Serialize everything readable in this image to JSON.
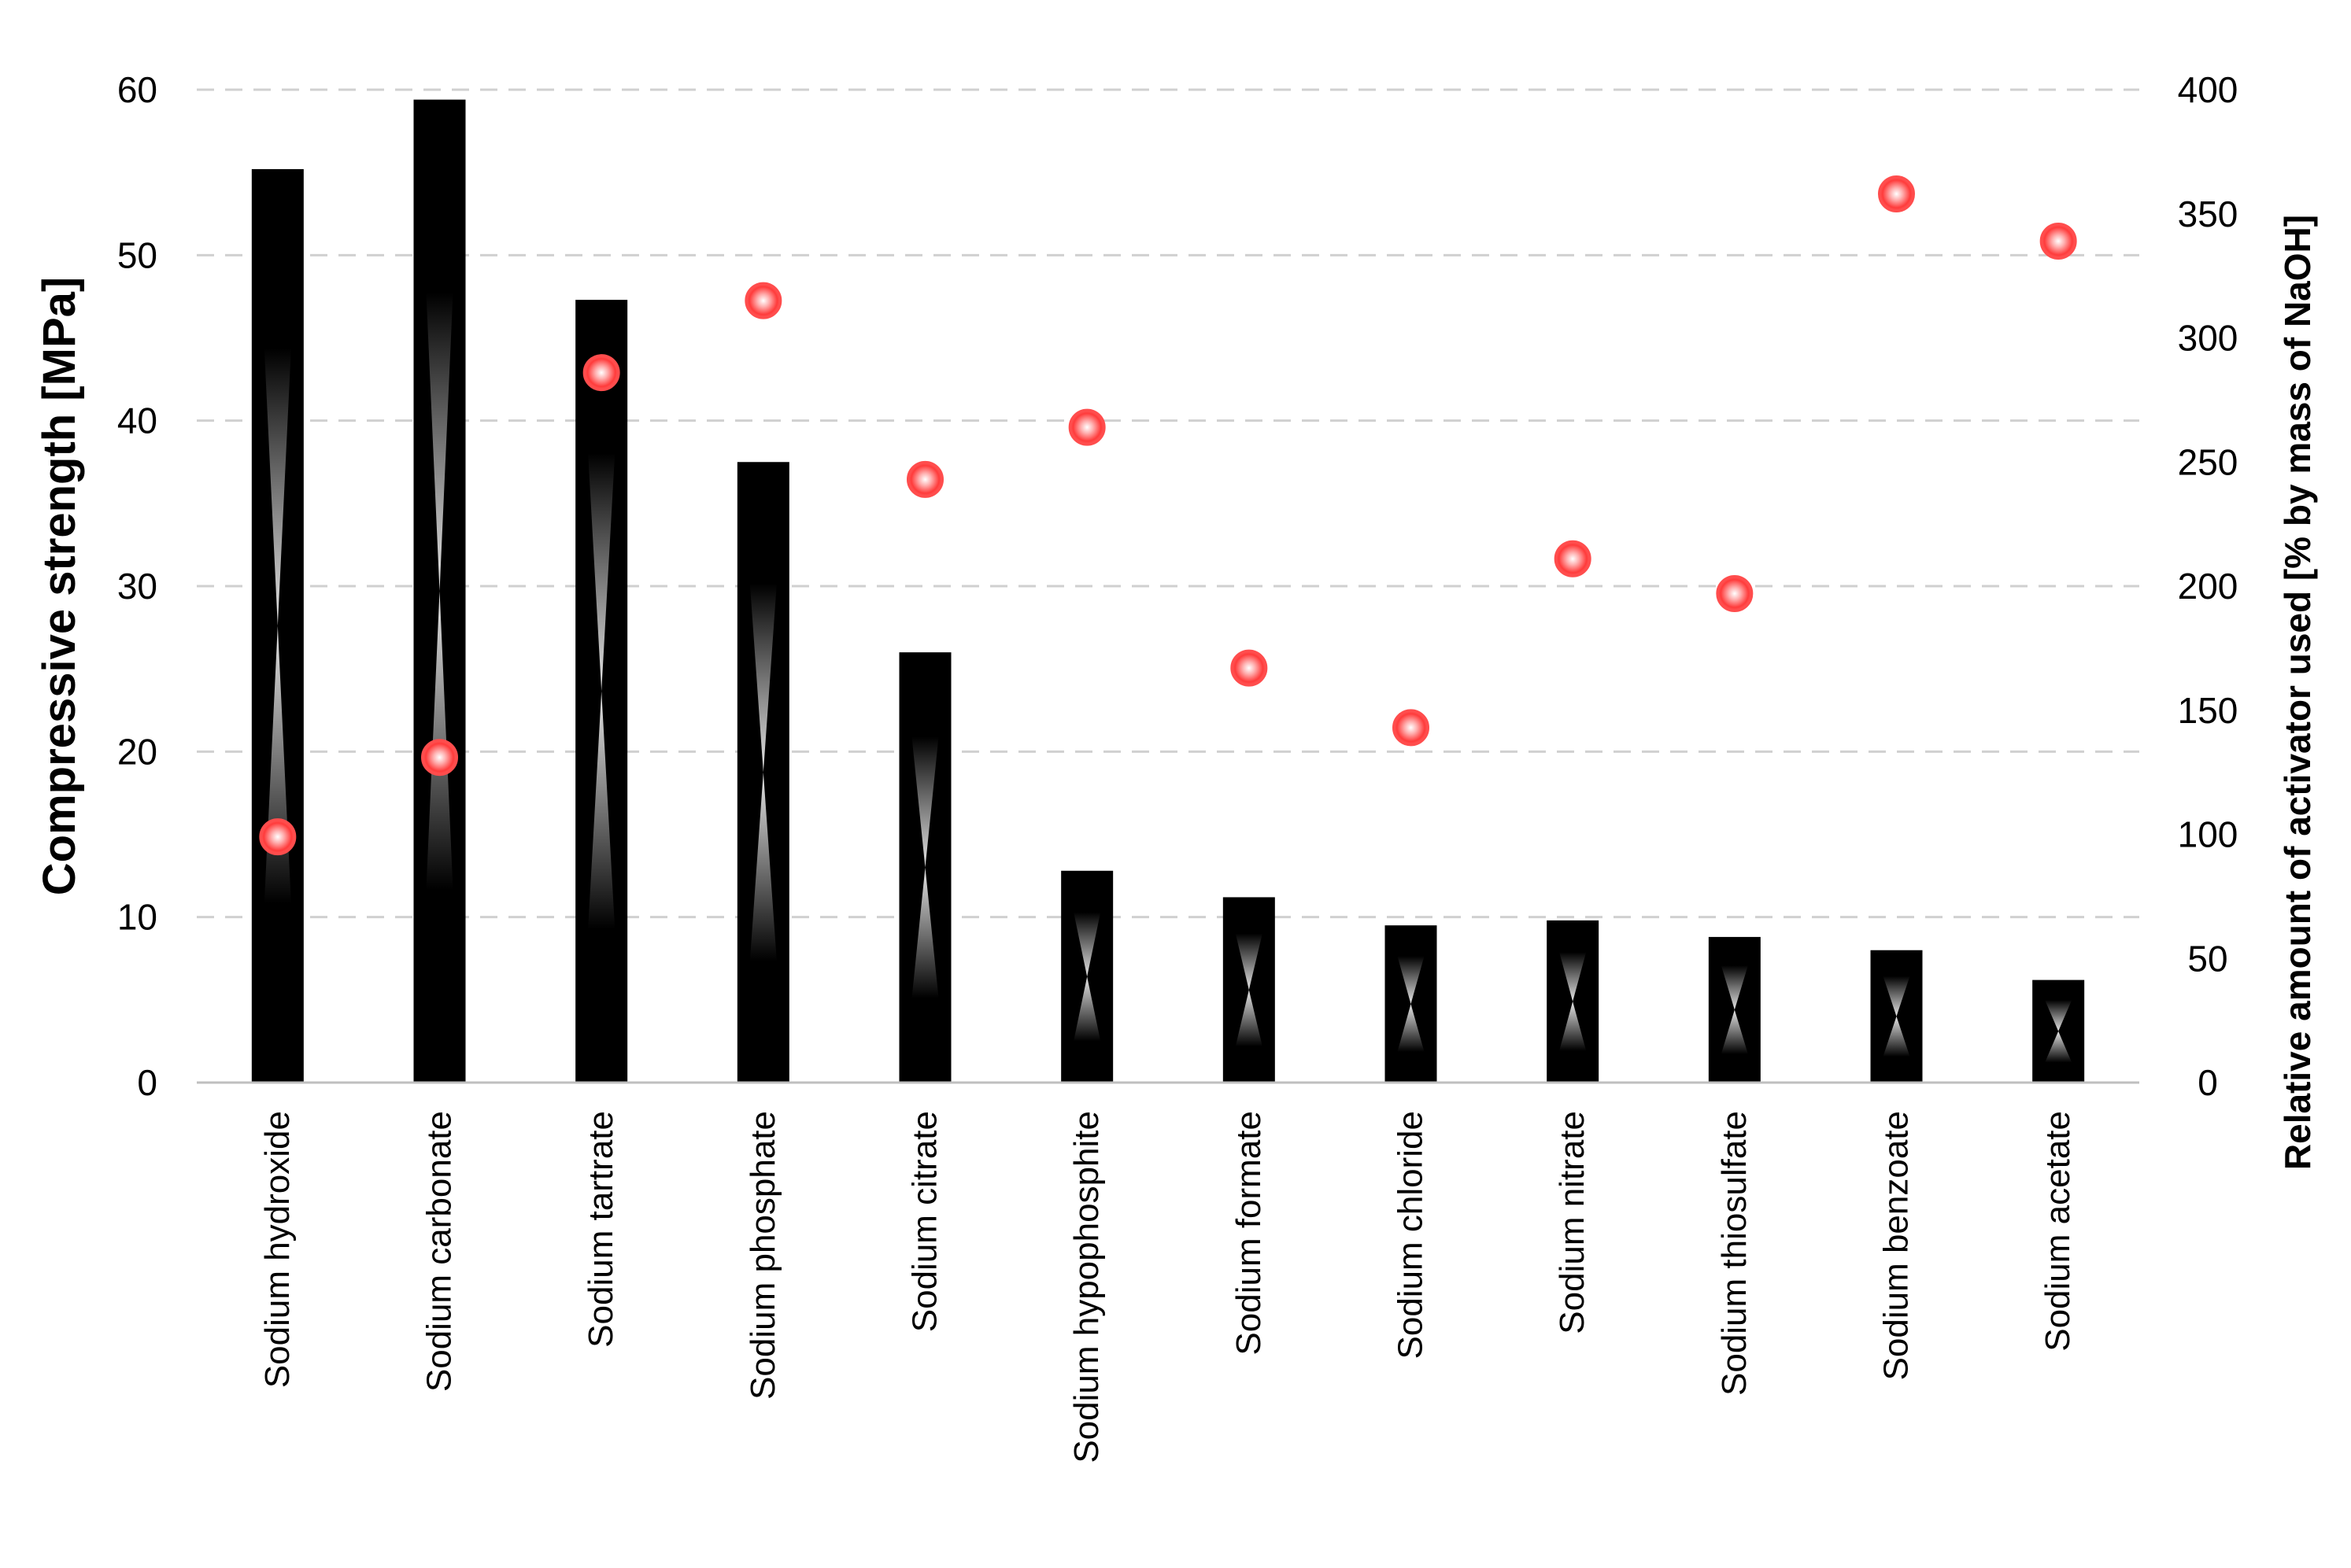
{
  "chart_data": {
    "type": "bar",
    "categories": [
      "Sodium hydroxide",
      "Sodium carbonate",
      "Sodium tartrate",
      "Sodium phosphate",
      "Sodium citrate",
      "Sodium hypophosphite",
      "Sodium formate",
      "Sodium chloride",
      "Sodium nitrate",
      "Sodium thiosulfate",
      "Sodium benzoate",
      "Sodium acetate"
    ],
    "series": [
      {
        "type": "bar",
        "axis": "left",
        "values": [
          55.2,
          59.4,
          47.3,
          37.5,
          26.0,
          12.8,
          11.2,
          9.5,
          9.8,
          8.8,
          8.0,
          6.2
        ]
      },
      {
        "type": "scatter",
        "axis": "right",
        "values": [
          99,
          131,
          286,
          315,
          243,
          264,
          167,
          143,
          211,
          197,
          358,
          339
        ]
      }
    ],
    "ylabel": "Compressive strength [MPa]",
    "y2label": "Relative amount of activator used [% by mass of NaOH]",
    "ylim": [
      0,
      60
    ],
    "y2lim": [
      0,
      400
    ],
    "yticks": [
      0,
      10,
      20,
      30,
      40,
      50,
      60
    ],
    "y2ticks": [
      0,
      50,
      100,
      150,
      200,
      250,
      300,
      350,
      400
    ],
    "grid": true,
    "legend": "none",
    "colors": {
      "bar": "#000000",
      "bar_highlight": "#ffffff",
      "marker": "#ff3b3b",
      "grid": "#d0d0d0"
    }
  }
}
